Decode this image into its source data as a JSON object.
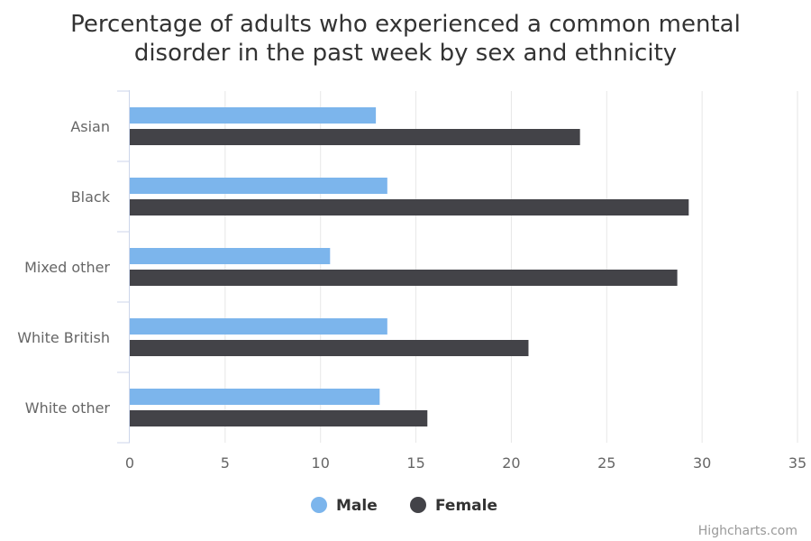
{
  "chart_data": {
    "type": "bar",
    "orientation": "horizontal",
    "title": "Percentage of adults who experienced a common mental disorder in the past week by sex and ethnicity",
    "title_lines": [
      "Percentage of adults who experienced a common mental",
      "disorder in the past week by sex and ethnicity"
    ],
    "categories": [
      "Asian",
      "Black",
      "Mixed other",
      "White British",
      "White other"
    ],
    "series": [
      {
        "name": "Male",
        "color": "#7cb5ec",
        "values": [
          12.9,
          13.5,
          10.5,
          13.5,
          13.1
        ]
      },
      {
        "name": "Female",
        "color": "#434348",
        "values": [
          23.6,
          29.3,
          28.7,
          20.9,
          15.6
        ]
      }
    ],
    "xlim": [
      0,
      35
    ],
    "x_ticks": [
      0,
      5,
      10,
      15,
      20,
      25,
      30,
      35
    ],
    "xlabel": "",
    "ylabel": "",
    "grid": true,
    "legend_position": "bottom-center"
  },
  "credit": "Highcharts.com"
}
